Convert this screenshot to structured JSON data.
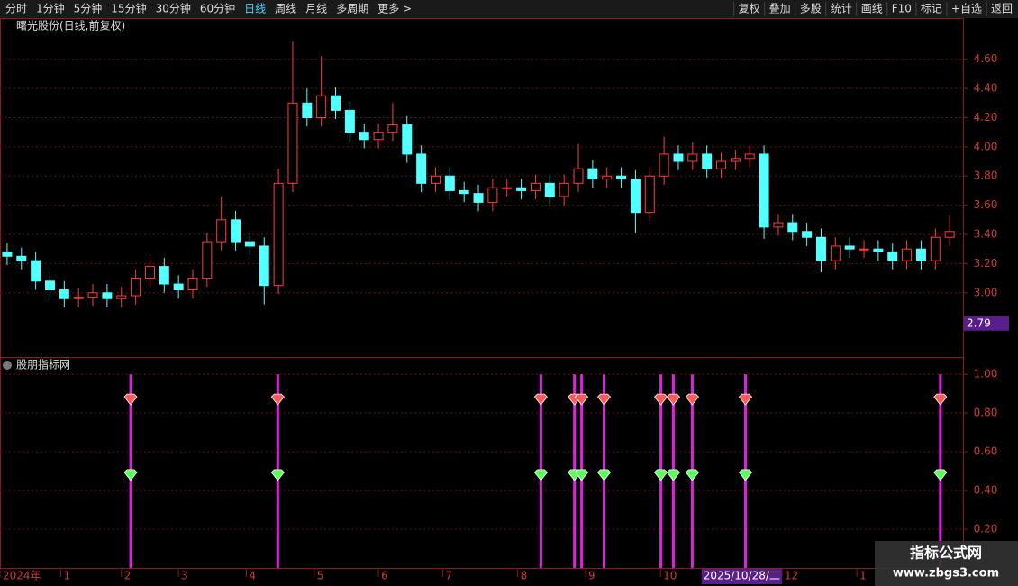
{
  "toolbar": {
    "periods": [
      "分时",
      "1分钟",
      "5分钟",
      "15分钟",
      "30分钟",
      "60分钟",
      "日线",
      "周线",
      "月线",
      "多周期",
      "更多 >"
    ],
    "actions": [
      "复权",
      "叠加",
      "多股",
      "统计",
      "画线",
      "F10",
      "标记",
      "+自选",
      "返回"
    ]
  },
  "watermark": {
    "title": "指标公式网",
    "url": "www.zbgs3.com"
  },
  "chart_data": [
    {
      "type": "candlestick",
      "title": "曙光股份(日线,前复权)",
      "up_color": "#ff3b3b",
      "down_color": "#54ffff",
      "grid": true,
      "x": [
        2,
        6,
        10,
        14,
        18,
        22,
        26,
        30,
        34,
        38,
        42,
        46,
        50,
        54,
        58,
        62,
        66,
        70,
        74,
        78,
        82,
        86,
        90,
        94,
        98,
        102,
        106,
        110,
        114,
        118,
        122,
        126,
        130,
        134,
        138,
        142,
        146,
        150,
        154,
        158,
        162,
        166,
        170,
        174,
        178,
        182,
        186,
        190,
        194,
        198,
        202,
        206,
        210,
        214,
        218,
        222,
        226,
        230,
        234,
        238,
        242,
        246,
        250,
        254,
        258,
        262,
        266
      ],
      "open": [
        3.28,
        3.25,
        3.22,
        3.08,
        3.02,
        2.96,
        2.97,
        3.0,
        2.96,
        2.98,
        3.1,
        3.18,
        3.06,
        3.02,
        3.1,
        3.35,
        3.5,
        3.35,
        3.32,
        3.05,
        3.75,
        4.3,
        4.2,
        4.35,
        4.25,
        4.1,
        4.05,
        4.1,
        4.15,
        3.95,
        3.75,
        3.8,
        3.7,
        3.68,
        3.62,
        3.72,
        3.72,
        3.7,
        3.75,
        3.66,
        3.75,
        3.85,
        3.78,
        3.8,
        3.78,
        3.55,
        3.8,
        3.95,
        3.9,
        3.95,
        3.85,
        3.9,
        3.92,
        3.95,
        3.45,
        3.48,
        3.42,
        3.38,
        3.22,
        3.32,
        3.3,
        3.3,
        3.28,
        3.22,
        3.3,
        3.22,
        3.38
      ],
      "high": [
        3.34,
        3.31,
        3.28,
        3.14,
        3.08,
        3.03,
        3.06,
        3.06,
        3.04,
        3.16,
        3.24,
        3.24,
        3.12,
        3.16,
        3.41,
        3.66,
        3.56,
        3.41,
        3.38,
        3.85,
        4.72,
        4.4,
        4.62,
        4.41,
        4.31,
        4.16,
        4.16,
        4.3,
        4.21,
        4.01,
        3.86,
        3.86,
        3.76,
        3.74,
        3.78,
        3.78,
        3.78,
        3.81,
        3.81,
        3.81,
        4.02,
        3.91,
        3.86,
        3.86,
        3.84,
        3.86,
        4.07,
        4.01,
        4.03,
        4.01,
        3.96,
        3.98,
        4.01,
        4.01,
        3.54,
        3.54,
        3.48,
        3.44,
        3.38,
        3.38,
        3.36,
        3.36,
        3.34,
        3.36,
        3.36,
        3.44,
        3.53
      ],
      "low": [
        3.19,
        3.16,
        3.02,
        2.96,
        2.9,
        2.9,
        2.91,
        2.9,
        2.9,
        2.92,
        3.04,
        3.0,
        2.96,
        2.96,
        3.04,
        3.29,
        3.29,
        3.26,
        2.92,
        2.99,
        3.69,
        4.14,
        4.14,
        4.19,
        4.04,
        3.99,
        3.99,
        4.04,
        3.89,
        3.69,
        3.69,
        3.64,
        3.62,
        3.56,
        3.56,
        3.66,
        3.64,
        3.64,
        3.6,
        3.6,
        3.69,
        3.72,
        3.72,
        3.72,
        3.41,
        3.49,
        3.74,
        3.84,
        3.84,
        3.79,
        3.79,
        3.84,
        3.86,
        3.37,
        3.39,
        3.36,
        3.32,
        3.14,
        3.16,
        3.24,
        3.24,
        3.22,
        3.16,
        3.16,
        3.16,
        3.16,
        3.32
      ],
      "close": [
        3.25,
        3.22,
        3.08,
        3.02,
        2.96,
        2.97,
        3.0,
        2.96,
        2.98,
        3.1,
        3.18,
        3.06,
        3.02,
        3.1,
        3.35,
        3.5,
        3.35,
        3.32,
        3.05,
        3.75,
        4.3,
        4.2,
        4.35,
        4.25,
        4.1,
        4.05,
        4.1,
        4.15,
        3.95,
        3.75,
        3.8,
        3.7,
        3.68,
        3.62,
        3.72,
        3.72,
        3.7,
        3.75,
        3.66,
        3.75,
        3.85,
        3.78,
        3.8,
        3.78,
        3.55,
        3.8,
        3.95,
        3.9,
        3.95,
        3.85,
        3.9,
        3.92,
        3.95,
        3.45,
        3.48,
        3.42,
        3.38,
        3.22,
        3.32,
        3.3,
        3.3,
        3.28,
        3.22,
        3.3,
        3.22,
        3.38,
        3.42
      ],
      "xlim": [
        0,
        270
      ],
      "ylim": [
        2.56,
        4.87
      ],
      "yticks": [
        {
          "value": 3.0,
          "label": "3.00"
        },
        {
          "value": 3.2,
          "label": "3.20"
        },
        {
          "value": 3.4,
          "label": "3.40"
        },
        {
          "value": 3.6,
          "label": "3.60"
        },
        {
          "value": 3.8,
          "label": "3.80"
        },
        {
          "value": 4.0,
          "label": "4.00"
        },
        {
          "value": 4.2,
          "label": "4.20"
        },
        {
          "value": 4.4,
          "label": "4.40"
        },
        {
          "value": 4.6,
          "label": "4.60"
        }
      ],
      "xticks": [
        {
          "value": 0,
          "label": "2024年"
        },
        {
          "value": 17,
          "label": "1"
        },
        {
          "value": 34,
          "label": "2"
        },
        {
          "value": 50,
          "label": "3"
        },
        {
          "value": 69,
          "label": "4"
        },
        {
          "value": 88,
          "label": "5"
        },
        {
          "value": 106,
          "label": "6"
        },
        {
          "value": 124,
          "label": "7"
        },
        {
          "value": 145,
          "label": "8"
        },
        {
          "value": 164,
          "label": "9"
        },
        {
          "value": 185,
          "label": "10"
        },
        {
          "value": 219,
          "label": "12"
        },
        {
          "value": 240,
          "label": "1"
        }
      ],
      "cursor_label": {
        "value": 197,
        "label": "2025/10/28/二"
      },
      "last_price": 2.79
    },
    {
      "type": "signal",
      "title": "股朋指标网",
      "bar_color": "#e020e0",
      "sell_color": "#ff5a5a",
      "buy_color": "#5aff5a",
      "grid": true,
      "x": [
        36.6,
        77.8,
        151.5,
        160.9,
        162.9,
        169.2,
        185.1,
        188.6,
        193.9,
        208.8,
        263.4
      ],
      "bars": [
        1,
        1,
        1,
        1,
        1,
        1,
        1,
        1,
        1,
        1,
        1
      ],
      "sell": [
        0.87,
        0.87,
        0.87,
        0.87,
        0.87,
        0.87,
        0.87,
        0.87,
        0.87,
        0.87,
        0.87
      ],
      "buy": [
        0.48,
        0.48,
        0.48,
        0.48,
        0.48,
        0.48,
        0.48,
        0.48,
        0.48,
        0.48,
        0.48
      ],
      "xlim": [
        0,
        270
      ],
      "ylim": [
        0,
        1.08
      ],
      "yticks": [
        {
          "value": 0.2,
          "label": "0.20"
        },
        {
          "value": 0.4,
          "label": "0.40"
        },
        {
          "value": 0.6,
          "label": "0.60"
        },
        {
          "value": 0.8,
          "label": "0.80"
        },
        {
          "value": 1.0,
          "label": "1.00"
        }
      ]
    }
  ]
}
